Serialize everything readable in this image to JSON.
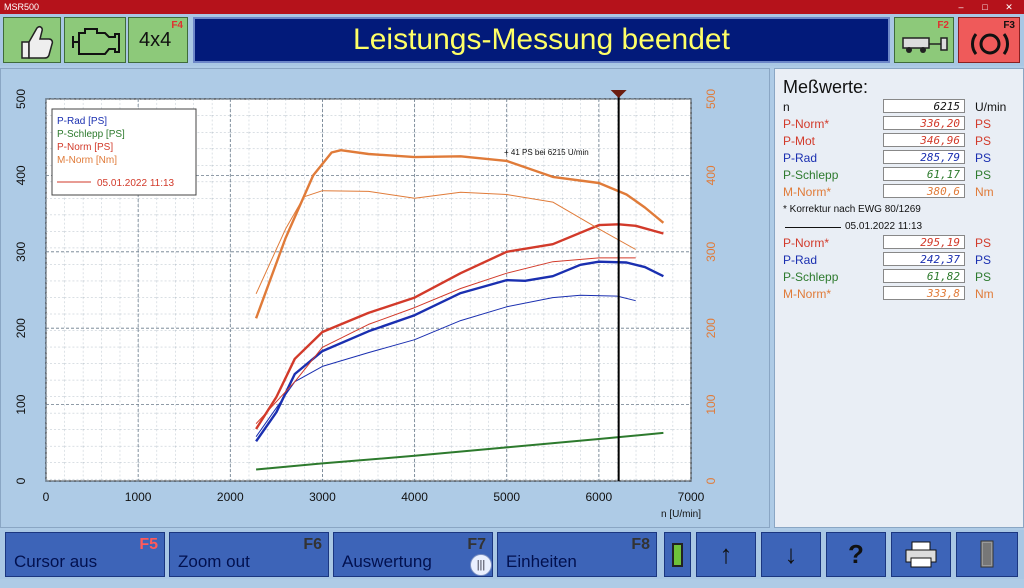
{
  "window": {
    "app_title": "MSR500"
  },
  "header": {
    "title": "Leistungs-Messung beendet",
    "btn_4x4_label": "4x4",
    "btn_4x4_key": "F4",
    "btn_trailer_key": "F2",
    "btn_brake_key": "F3"
  },
  "chart_data": {
    "type": "line",
    "title": "",
    "xlabel": "n [U/min]",
    "ylabel": "",
    "xlim": [
      0,
      7000
    ],
    "ylim": [
      0,
      500
    ],
    "y2lim": [
      0,
      500
    ],
    "xticks": [
      "0",
      "1000",
      "2000",
      "3000",
      "4000",
      "5000",
      "6000",
      "7000"
    ],
    "yticks": [
      "0",
      "100",
      "200",
      "300",
      "400",
      "500"
    ],
    "y2ticks": [
      "0",
      "100",
      "200",
      "300",
      "400",
      "500"
    ],
    "grid": true,
    "legend_position": "top-left",
    "legend": [
      {
        "name": "P-Rad [PS]",
        "color": "#1a2fb0"
      },
      {
        "name": "P-Schlepp [PS]",
        "color": "#2d7a2d"
      },
      {
        "name": "P-Norm [PS]",
        "color": "#d23a2a"
      },
      {
        "name": "M-Norm [Nm]",
        "color": "#e07b39"
      }
    ],
    "legend_reference": {
      "label": "05.01.2022 11:13",
      "color": "#d23a2a"
    },
    "annotation": "+ 41 PS bei 6215 U/min",
    "cursor_x": 6215,
    "series": [
      {
        "name": "P-Rad [PS]",
        "color": "#1a2fb0",
        "width": 2.4,
        "x": [
          2280,
          2500,
          2700,
          3000,
          3500,
          4000,
          4500,
          5000,
          5200,
          5500,
          5800,
          6000,
          6300,
          6500,
          6700
        ],
        "y": [
          52,
          90,
          140,
          170,
          196,
          217,
          246,
          263,
          262,
          268,
          283,
          287,
          286,
          280,
          268
        ]
      },
      {
        "name": "P-Schlepp [PS]",
        "color": "#2d7a2d",
        "width": 2,
        "x": [
          2280,
          3000,
          4000,
          5000,
          6000,
          6700
        ],
        "y": [
          15,
          23,
          33,
          44,
          55,
          63
        ]
      },
      {
        "name": "P-Norm [PS]",
        "color": "#d23a2a",
        "width": 2.4,
        "x": [
          2280,
          2500,
          2700,
          3000,
          3500,
          4000,
          4500,
          5000,
          5500,
          6000,
          6215,
          6400,
          6700
        ],
        "y": [
          68,
          110,
          160,
          195,
          220,
          240,
          272,
          300,
          310,
          335,
          336,
          334,
          324
        ]
      },
      {
        "name": "M-Norm [Nm]",
        "color": "#e07b39",
        "width": 2.4,
        "x": [
          2280,
          2600,
          2900,
          3100,
          3200,
          3500,
          4000,
          4500,
          5000,
          5500,
          6000,
          6300,
          6500,
          6700
        ],
        "y": [
          213,
          318,
          400,
          430,
          433,
          428,
          424,
          425,
          419,
          398,
          390,
          375,
          358,
          338
        ]
      },
      {
        "name": "P-Rad [PS] 05.01.2022 11:13",
        "color": "#1a2fb0",
        "width": 1,
        "x": [
          2280,
          2700,
          3000,
          3500,
          4000,
          4500,
          5000,
          5500,
          5800,
          6200,
          6400
        ],
        "y": [
          58,
          130,
          150,
          168,
          185,
          210,
          228,
          240,
          243,
          242,
          236
        ]
      },
      {
        "name": "P-Norm [PS] 05.01.2022 11:13",
        "color": "#d23a2a",
        "width": 1,
        "x": [
          2280,
          2700,
          3000,
          3500,
          4000,
          4500,
          5000,
          5500,
          6000,
          6400
        ],
        "y": [
          75,
          130,
          175,
          205,
          227,
          252,
          272,
          287,
          292,
          292
        ]
      },
      {
        "name": "M-Norm [Nm] 05.01.2022 11:13",
        "color": "#e07b39",
        "width": 1,
        "x": [
          2280,
          2600,
          2800,
          3000,
          3500,
          4000,
          4500,
          5000,
          5500,
          6000,
          6400
        ],
        "y": [
          245,
          330,
          372,
          380,
          379,
          370,
          378,
          375,
          365,
          330,
          303
        ]
      }
    ]
  },
  "measurements": {
    "title": "Meßwerte:",
    "rows": [
      {
        "label": "n",
        "value": "6215",
        "unit": "U/min",
        "label_color": "#111111",
        "value_color": "#111111"
      },
      {
        "label": "P-Norm*",
        "value": "336,20",
        "unit": "PS",
        "label_color": "#d23a2a",
        "value_color": "#d23a2a"
      },
      {
        "label": "P-Mot",
        "value": "346,96",
        "unit": "PS",
        "label_color": "#d23a2a",
        "value_color": "#d23a2a"
      },
      {
        "label": "P-Rad",
        "value": "285,79",
        "unit": "PS",
        "label_color": "#1a2fb0",
        "value_color": "#1a2fb0"
      },
      {
        "label": "P-Schlepp",
        "value": "61,17",
        "unit": "PS",
        "label_color": "#2d7a2d",
        "value_color": "#2d7a2d"
      },
      {
        "label": "M-Norm*",
        "value": "380,6",
        "unit": "Nm",
        "label_color": "#e07b39",
        "value_color": "#e07b39"
      }
    ],
    "note": "* Korrektur nach EWG 80/1269",
    "reference_date": "05.01.2022 11:13",
    "ref_rows": [
      {
        "label": "P-Norm*",
        "value": "295,19",
        "unit": "PS",
        "label_color": "#d23a2a",
        "value_color": "#d23a2a"
      },
      {
        "label": "P-Rad",
        "value": "242,37",
        "unit": "PS",
        "label_color": "#1a2fb0",
        "value_color": "#1a2fb0"
      },
      {
        "label": "P-Schlepp",
        "value": "61,82",
        "unit": "PS",
        "label_color": "#2d7a2d",
        "value_color": "#2d7a2d"
      },
      {
        "label": "M-Norm*",
        "value": "333,8",
        "unit": "Nm",
        "label_color": "#e07b39",
        "value_color": "#e07b39"
      }
    ]
  },
  "footer": {
    "f5_label": "Cursor aus",
    "f5_key": "F5",
    "f6_label": "Zoom out",
    "f6_key": "F6",
    "f7_label": "Auswertung",
    "f7_key": "F7",
    "f8_label": "Einheiten",
    "f8_key": "F8",
    "arrow_up": "↑",
    "arrow_down": "↓",
    "help": "?"
  }
}
